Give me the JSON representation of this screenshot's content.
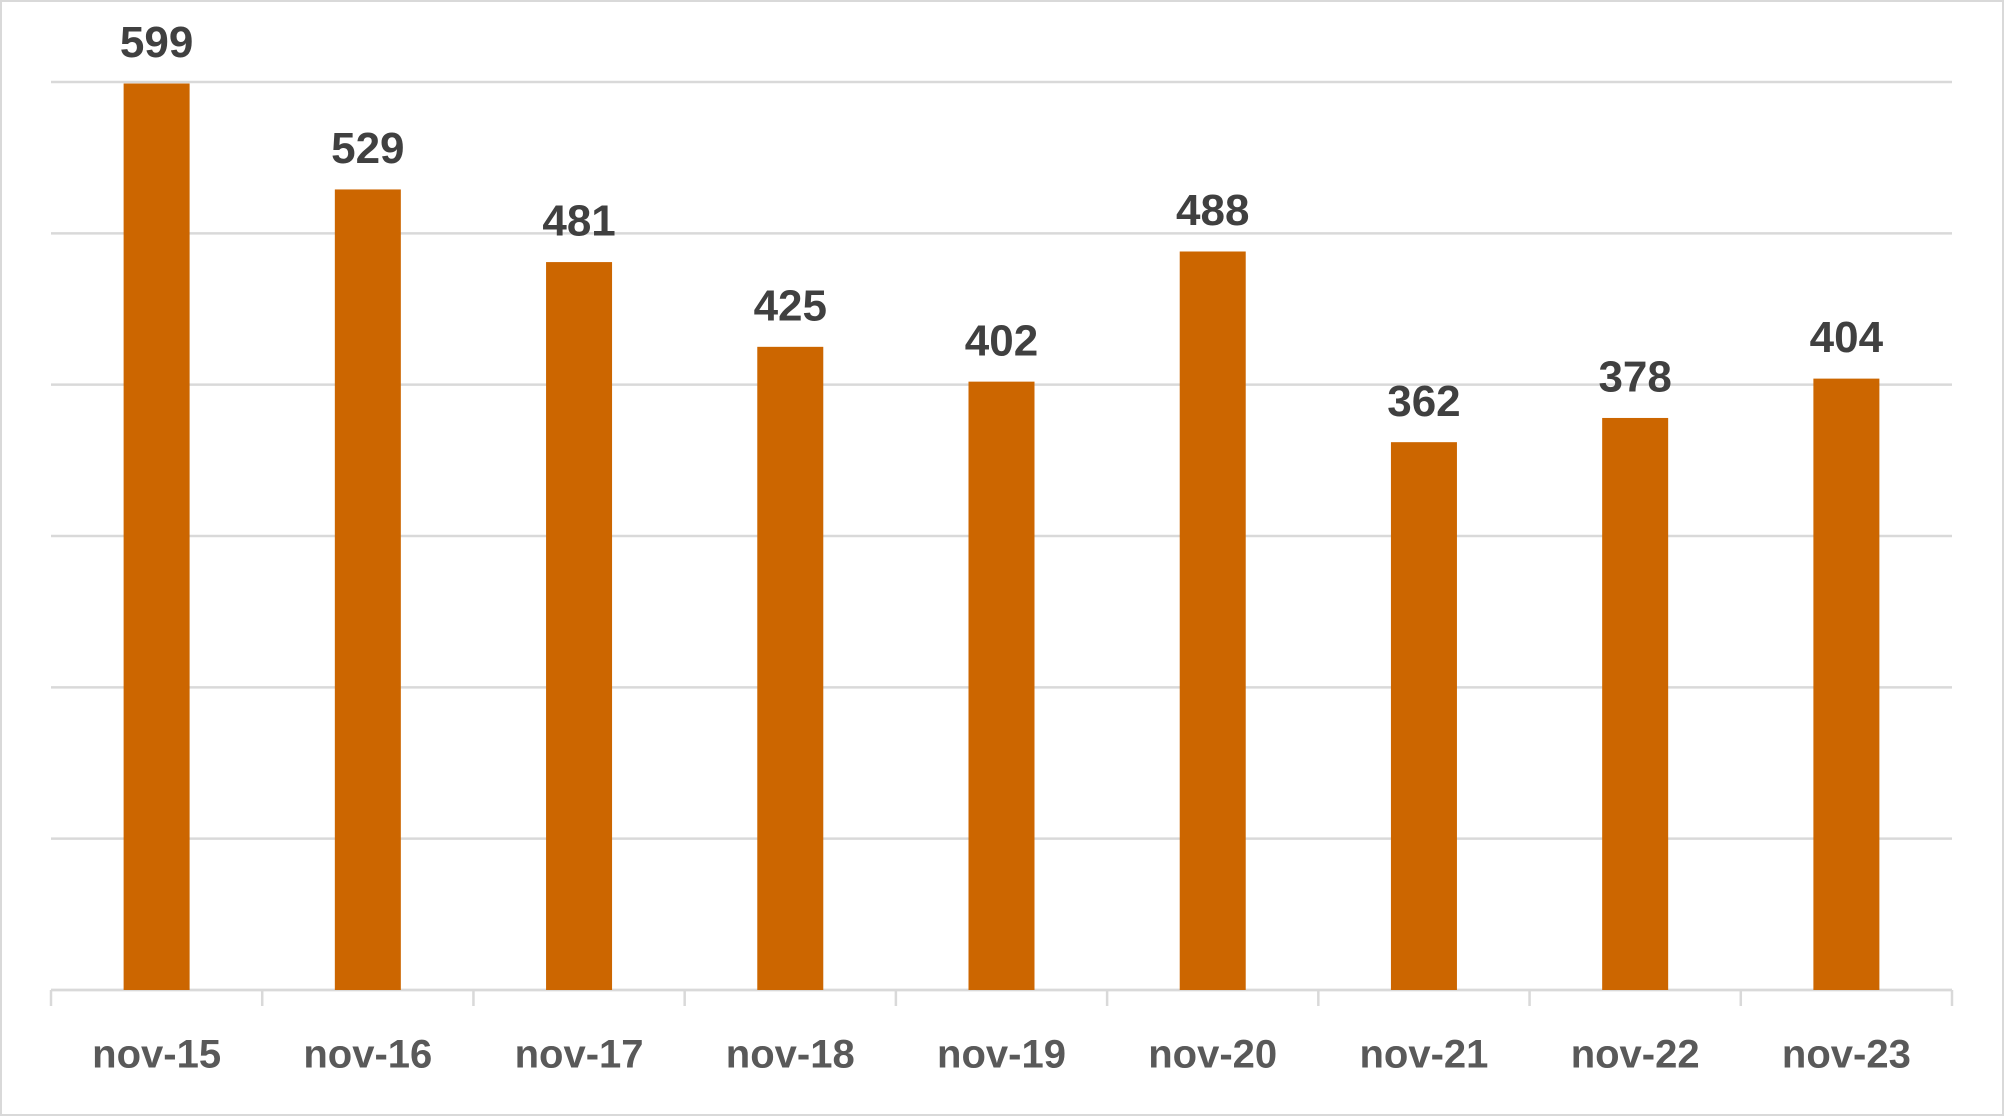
{
  "chart_data": {
    "type": "bar",
    "categories": [
      "nov-15",
      "nov-16",
      "nov-17",
      "nov-18",
      "nov-19",
      "nov-20",
      "nov-21",
      "nov-22",
      "nov-23"
    ],
    "values": [
      599,
      529,
      481,
      425,
      402,
      488,
      362,
      378,
      404
    ],
    "color": "#cc6600",
    "ylim": [
      0,
      600
    ],
    "yticks": [
      0,
      100,
      200,
      300,
      400,
      500,
      600
    ],
    "grid": true,
    "show_ytick_labels": false,
    "data_labels": true
  }
}
